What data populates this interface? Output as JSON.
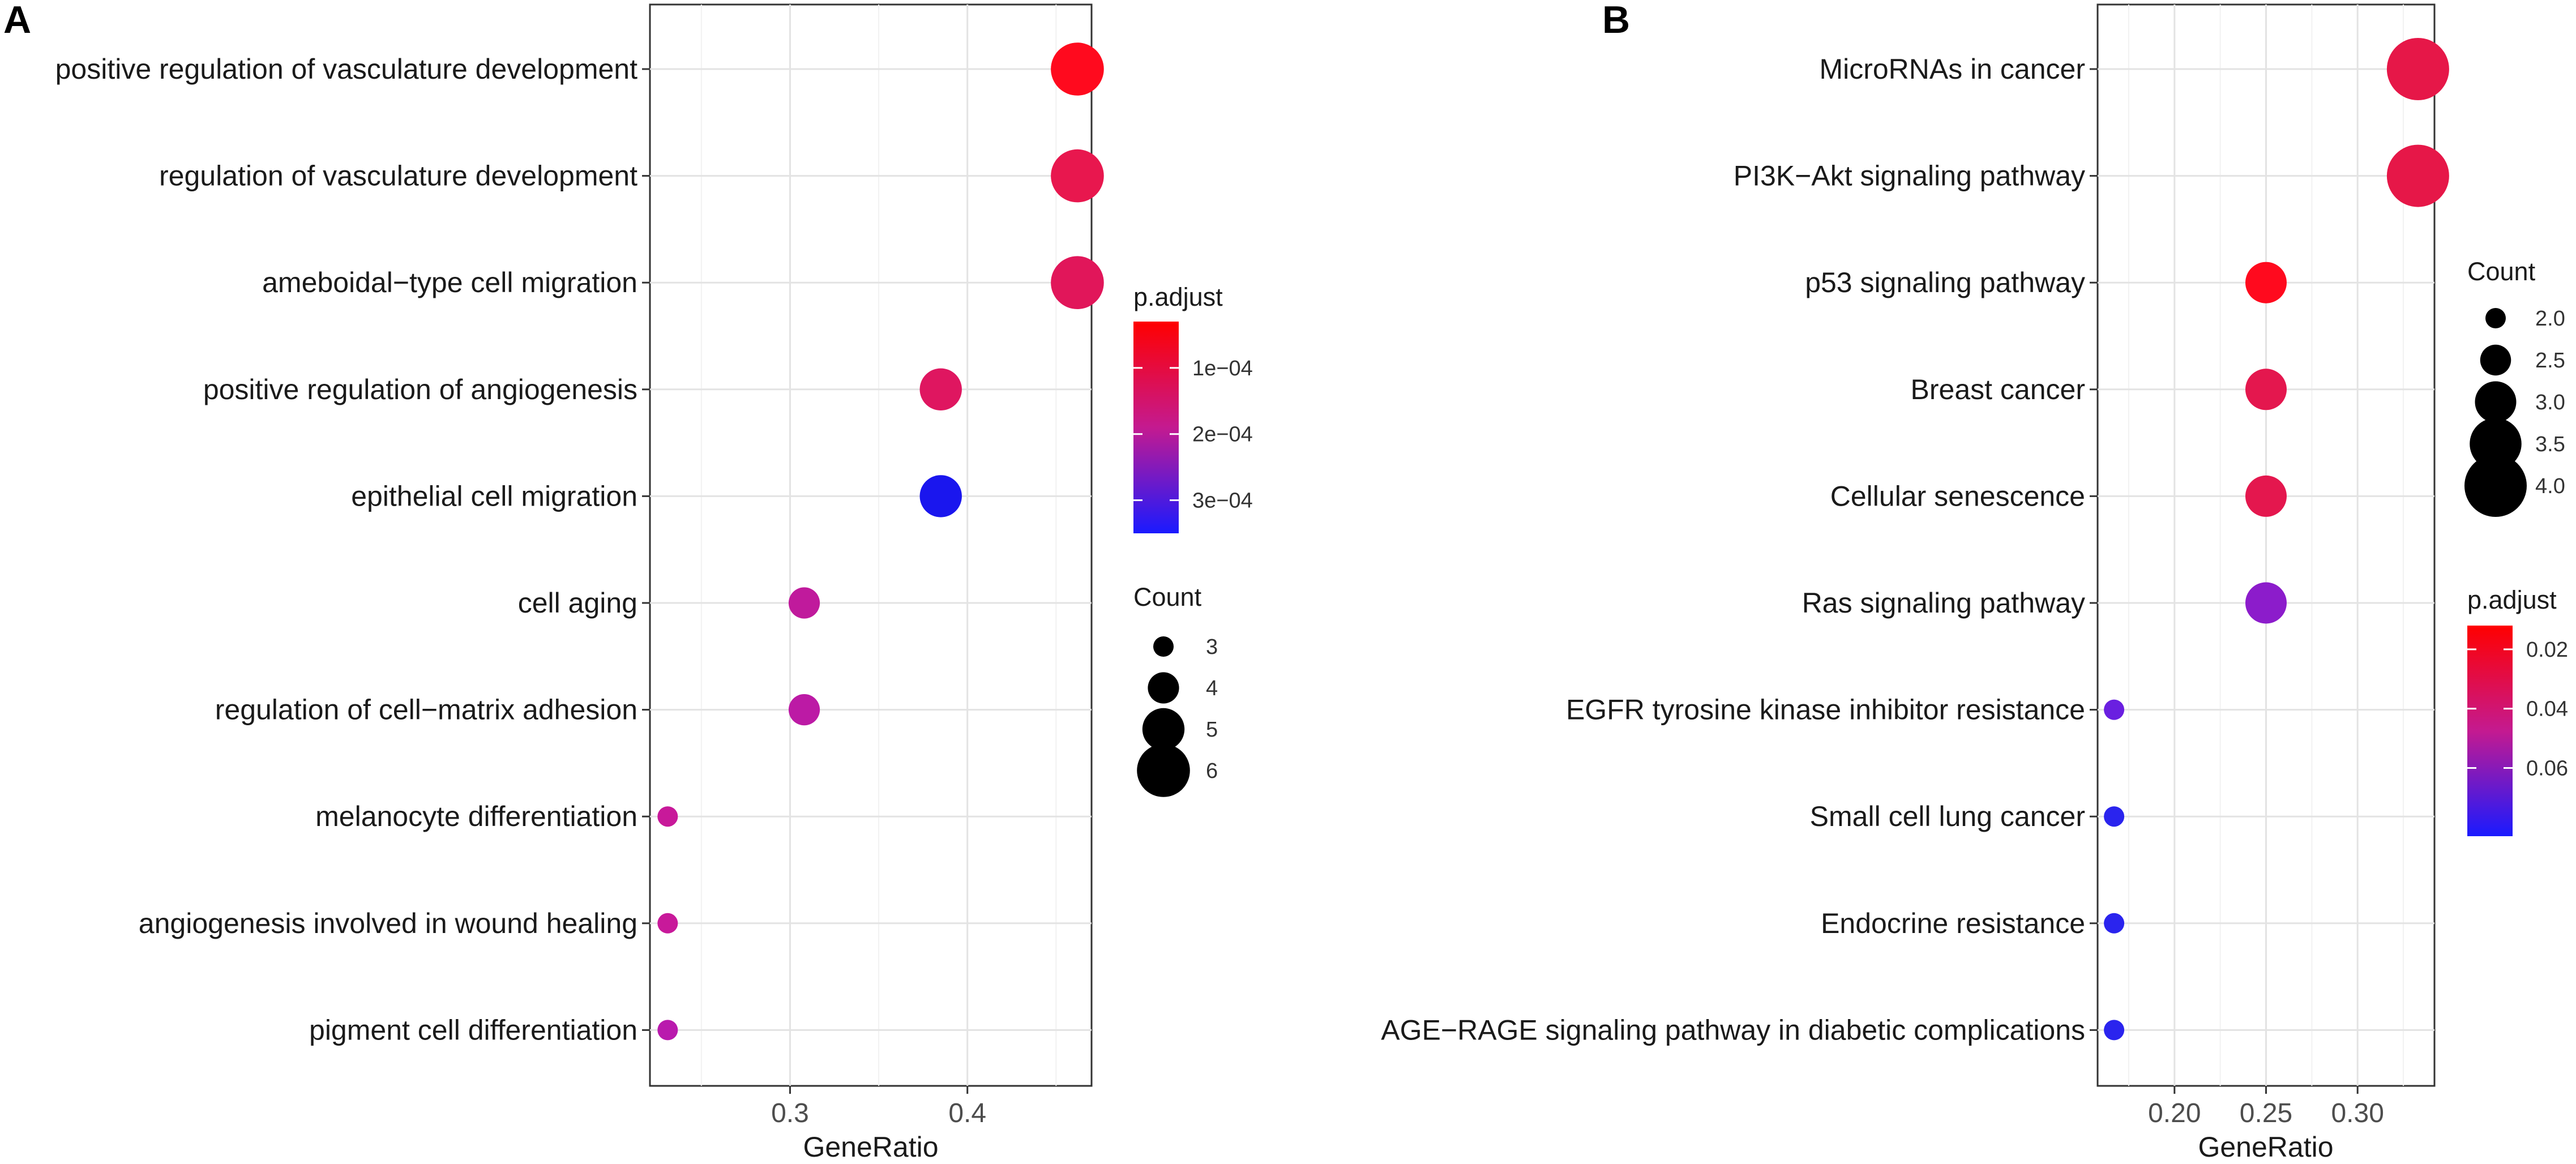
{
  "chart_data": [
    {
      "panel": "A",
      "type": "scatter",
      "subtype": "dotplot",
      "xlabel": "GeneRatio",
      "ylabel": "",
      "xlim": [
        0.221,
        0.47
      ],
      "xticks": [
        0.3,
        0.4
      ],
      "xtick_labels": [
        "0.3",
        "0.4"
      ],
      "grid": true,
      "categories": [
        "positive regulation of vasculature development",
        "regulation of vasculature development",
        "ameboidal−type cell migration",
        "positive regulation of angiogenesis",
        "epithelial cell migration",
        "cell aging",
        "regulation of cell−matrix adhesion",
        "melanocyte differentiation",
        "angiogenesis involved in wound healing",
        "pigment cell differentiation"
      ],
      "points": [
        {
          "term": "positive regulation of vasculature development",
          "gene_ratio": 0.462,
          "count": 6,
          "p_adjust": 3e-05,
          "color": "#ff0a1e"
        },
        {
          "term": "regulation of vasculature development",
          "gene_ratio": 0.462,
          "count": 6,
          "p_adjust": 9e-05,
          "color": "#e8174e"
        },
        {
          "term": "ameboidal−type cell migration",
          "gene_ratio": 0.462,
          "count": 6,
          "p_adjust": 0.0001,
          "color": "#e1165a"
        },
        {
          "term": "positive regulation of angiogenesis",
          "gene_ratio": 0.385,
          "count": 5,
          "p_adjust": 0.00011,
          "color": "#df1660"
        },
        {
          "term": "epithelial cell migration",
          "gene_ratio": 0.385,
          "count": 5,
          "p_adjust": 0.00035,
          "color": "#1a16ee"
        },
        {
          "term": "cell aging",
          "gene_ratio": 0.308,
          "count": 4,
          "p_adjust": 0.00017,
          "color": "#c01a9c"
        },
        {
          "term": "regulation of cell−matrix adhesion",
          "gene_ratio": 0.308,
          "count": 4,
          "p_adjust": 0.00018,
          "color": "#bc1aa5"
        },
        {
          "term": "melanocyte differentiation",
          "gene_ratio": 0.231,
          "count": 3,
          "p_adjust": 0.00016,
          "color": "#c8199a"
        },
        {
          "term": "angiogenesis involved in wound healing",
          "gene_ratio": 0.231,
          "count": 3,
          "p_adjust": 0.00016,
          "color": "#c8199a"
        },
        {
          "term": "pigment cell differentiation",
          "gene_ratio": 0.231,
          "count": 3,
          "p_adjust": 0.00018,
          "color": "#b91aad"
        }
      ],
      "legend_padjust": {
        "title": "p.adjust",
        "labels": [
          "1e−04",
          "2e−04",
          "3e−04"
        ],
        "tick_values": [
          0.0001,
          0.0002,
          0.0003
        ],
        "range": [
          3e-05,
          0.00035
        ],
        "color_low": "#ff0000",
        "color_high": "#1a1aff"
      },
      "legend_count": {
        "title": "Count",
        "labels": [
          "3",
          "4",
          "5",
          "6"
        ],
        "values": [
          3,
          4,
          5,
          6
        ]
      }
    },
    {
      "panel": "B",
      "type": "scatter",
      "subtype": "dotplot",
      "xlabel": "GeneRatio",
      "ylabel": "",
      "xlim": [
        0.158,
        0.342
      ],
      "xticks": [
        0.2,
        0.25,
        0.3
      ],
      "xtick_labels": [
        "0.20",
        "0.25",
        "0.30"
      ],
      "grid": true,
      "categories": [
        "MicroRNAs in cancer",
        "PI3K−Akt signaling pathway",
        "p53 signaling pathway",
        "Breast cancer",
        "Cellular senescence",
        "Ras signaling pathway",
        "EGFR tyrosine kinase inhibitor resistance",
        "Small cell lung cancer",
        "Endocrine resistance",
        "AGE−RAGE signaling pathway in diabetic complications"
      ],
      "points": [
        {
          "term": "MicroRNAs in cancer",
          "gene_ratio": 0.333,
          "count": 4,
          "p_adjust": 0.028,
          "color": "#e61748"
        },
        {
          "term": "PI3K−Akt signaling pathway",
          "gene_ratio": 0.333,
          "count": 4,
          "p_adjust": 0.028,
          "color": "#e61748"
        },
        {
          "term": "p53 signaling pathway",
          "gene_ratio": 0.25,
          "count": 3,
          "p_adjust": 0.018,
          "color": "#ff0a1e"
        },
        {
          "term": "Breast cancer",
          "gene_ratio": 0.25,
          "count": 3,
          "p_adjust": 0.03,
          "color": "#e4174e"
        },
        {
          "term": "Cellular senescence",
          "gene_ratio": 0.25,
          "count": 3,
          "p_adjust": 0.03,
          "color": "#e4174e"
        },
        {
          "term": "Ras signaling pathway",
          "gene_ratio": 0.25,
          "count": 3,
          "p_adjust": 0.06,
          "color": "#8c1ccb"
        },
        {
          "term": "EGFR tyrosine kinase inhibitor resistance",
          "gene_ratio": 0.167,
          "count": 2,
          "p_adjust": 0.07,
          "color": "#6a1fe0"
        },
        {
          "term": "Small cell lung cancer",
          "gene_ratio": 0.167,
          "count": 2,
          "p_adjust": 0.08,
          "color": "#2a24ee"
        },
        {
          "term": "Endocrine resistance",
          "gene_ratio": 0.167,
          "count": 2,
          "p_adjust": 0.08,
          "color": "#2a24ee"
        },
        {
          "term": "AGE−RAGE signaling pathway in diabetic complications",
          "gene_ratio": 0.167,
          "count": 2,
          "p_adjust": 0.08,
          "color": "#2a24ee"
        }
      ],
      "legend_count": {
        "title": "Count",
        "labels": [
          "2.0",
          "2.5",
          "3.0",
          "3.5",
          "4.0"
        ],
        "values": [
          2.0,
          2.5,
          3.0,
          3.5,
          4.0
        ]
      },
      "legend_padjust": {
        "title": "p.adjust",
        "labels": [
          "0.02",
          "0.04",
          "0.06"
        ],
        "tick_values": [
          0.02,
          0.04,
          0.06
        ],
        "range": [
          0.012,
          0.083
        ],
        "color_low": "#ff0000",
        "color_high": "#1a1aff"
      }
    }
  ]
}
